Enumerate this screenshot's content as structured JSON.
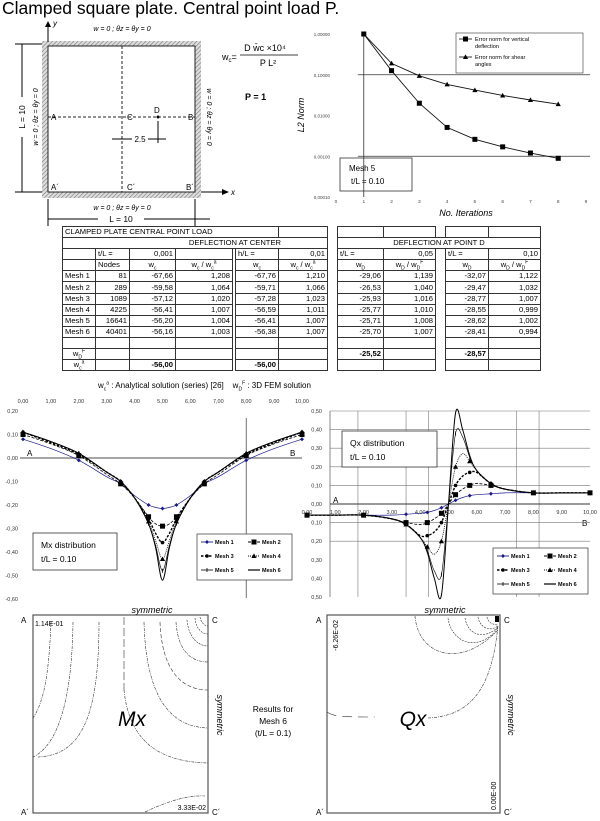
{
  "title": "Clamped square plate. Central point load P.",
  "plate": {
    "bc_top": "w = 0 ; θz = θy = 0",
    "bc_bottom": "w = 0 ; θz = θy = 0",
    "bc_left": "w = 0 ; θz = θy = 0",
    "bc_right": "w = 0 ; θz = θy = 0",
    "dim_left": "L = 10",
    "dim_bottom": "L = 10",
    "dim_inner": "2.5",
    "axis_x": "x",
    "axis_y": "y",
    "points": {
      "A": "A",
      "B": "B",
      "C": "C",
      "D": "D",
      "A2": "A´",
      "B2": "B´",
      "C2": "C´"
    }
  },
  "formula": {
    "lhs": "w",
    "lhs_sub": "c",
    "num": "D w̄c ×10⁴",
    "den": "P L²",
    "load": "P = 1"
  },
  "table": {
    "title": "CLAMPED PLATE CENTRAL POINT LOAD",
    "center_header": "DEFLECTION  AT  CENTER",
    "pointd_header": "DEFLECTION AT POINT D",
    "thickness_row": {
      "a_label": "t/L =",
      "a_value": "0,001",
      "b_label": "h/L =",
      "b_value": "0,01",
      "c_label": "t/L =",
      "c_value": "0,05",
      "d_label": "t/L =",
      "d_value": "0,10"
    },
    "col_headers": {
      "nodes": "Nodes",
      "wc": {
        "t": "w",
        "sub": "c"
      },
      "wc_ratio": {
        "t": "w",
        "sub": "c",
        "t2": " / w",
        "sub2": "c",
        "sup2": "a"
      },
      "wd": {
        "t": "w",
        "sub": "D"
      },
      "wd_ratio": {
        "t": "w",
        "sub": "D",
        "t2": " / w",
        "sub2": "D",
        "sup2": "F"
      }
    },
    "rows": [
      {
        "mesh": "Mesh 1",
        "nodes": "81",
        "a": [
          "-67,66",
          "1,208"
        ],
        "b": [
          "-67,76",
          "1,210"
        ],
        "c": [
          "-29,06",
          "1,139"
        ],
        "d": [
          "-32,07",
          "1,122"
        ]
      },
      {
        "mesh": "Mesh 2",
        "nodes": "289",
        "a": [
          "-59,58",
          "1,064"
        ],
        "b": [
          "-59,71",
          "1,066"
        ],
        "c": [
          "-26,53",
          "1,040"
        ],
        "d": [
          "-29,47",
          "1,032"
        ]
      },
      {
        "mesh": "Mesh 3",
        "nodes": "1089",
        "a": [
          "-57,12",
          "1,020"
        ],
        "b": [
          "-57,28",
          "1,023"
        ],
        "c": [
          "-25,93",
          "1,016"
        ],
        "d": [
          "-28,77",
          "1,007"
        ]
      },
      {
        "mesh": "Mesh 4",
        "nodes": "4225",
        "a": [
          "-56,41",
          "1,007"
        ],
        "b": [
          "-56,59",
          "1,011"
        ],
        "c": [
          "-25,77",
          "1,010"
        ],
        "d": [
          "-28,55",
          "0,999"
        ]
      },
      {
        "mesh": "Mesh 5",
        "nodes": "16641",
        "a": [
          "-56,20",
          "1,004"
        ],
        "b": [
          "-56,41",
          "1,007"
        ],
        "c": [
          "-25,71",
          "1,008"
        ],
        "d": [
          "-28,62",
          "1,002"
        ]
      },
      {
        "mesh": "Mesh 6",
        "nodes": "40401",
        "a": [
          "-56,16",
          "1,003"
        ],
        "b": [
          "-56,38",
          "1,007"
        ],
        "c": [
          "-25,70",
          "1,007"
        ],
        "d": [
          "-28,41",
          "0,994"
        ]
      }
    ],
    "ref_fem": {
      "label": {
        "t": "w",
        "sub": "D",
        "sup": "F"
      },
      "c": "-25,52",
      "d": "-28,57"
    },
    "ref_analytical": {
      "label": {
        "t": "w",
        "sub": "c",
        "sup": "a"
      },
      "a": "-56,00",
      "b": "-56,00"
    }
  },
  "footnote": {
    "a_sym": "w",
    "a_sub": "c",
    "a_sup": "a",
    "a_text": " : Analytical solution (series) [26]",
    "f_sym": "w",
    "f_sub": "D",
    "f_sup": "F",
    "f_text": " : 3D FEM solution"
  },
  "chart_data": [
    {
      "id": "l2",
      "type": "line",
      "xlabel": "No. Iterations",
      "ylabel": "L2 Norm",
      "yscale": "log",
      "xlim": [
        0,
        9
      ],
      "ylim": [
        0.0001,
        1
      ],
      "x_ticks": [
        "0",
        "1",
        "2",
        "3",
        "4",
        "5",
        "6",
        "7",
        "8",
        "9"
      ],
      "y_ticks": [
        "1,00000",
        "0,10000",
        "0,01000",
        "0,00100",
        "0,00010"
      ],
      "x": [
        1,
        2,
        3,
        4,
        5,
        6,
        7,
        8
      ],
      "series": [
        {
          "name": "Error norm for vertical deflection",
          "marker": "square",
          "values": [
            1.0,
            0.126,
            0.02,
            0.0051,
            0.0026,
            0.0017,
            0.0012,
            0.00089
          ]
        },
        {
          "name": "Error norm for shear angles",
          "marker": "triangle",
          "values": [
            1.0,
            0.19,
            0.094,
            0.058,
            0.042,
            0.031,
            0.024,
            0.019
          ]
        }
      ],
      "legend": "top-right",
      "annotation": [
        "Mesh 5",
        "t/L = 0.10"
      ]
    },
    {
      "id": "mx",
      "type": "line",
      "xlim": [
        0,
        10
      ],
      "ylim": [
        -0.6,
        0.2
      ],
      "x_ticks": [
        "0,00",
        "1,00",
        "2,00",
        "3,00",
        "4,00",
        "5,00",
        "6,00",
        "7,00",
        "8,00",
        "9,00",
        "10,00"
      ],
      "y_ticks": [
        "0,20",
        "0,10",
        "0,00",
        "-0,10",
        "-0,20",
        "-0,30",
        "-0,40",
        "-0,50",
        "-0,60"
      ],
      "x": [
        0,
        1,
        2,
        3,
        3.5,
        4,
        4.5,
        4.75,
        5,
        5.25,
        5.5,
        6,
        6.5,
        7,
        8,
        9,
        10
      ],
      "series": [
        {
          "name": "Mesh 1",
          "color": "#1a1a8c",
          "values": [
            0.08,
            0.04,
            -0.01,
            -0.08,
            -0.11,
            -0.16,
            -0.2,
            -0.21,
            -0.215,
            -0.21,
            -0.2,
            -0.16,
            -0.11,
            -0.08,
            -0.01,
            0.04,
            0.08
          ]
        },
        {
          "name": "Mesh 2",
          "values": [
            0.1,
            0.06,
            0.01,
            -0.07,
            -0.11,
            -0.17,
            -0.25,
            -0.28,
            -0.29,
            -0.28,
            -0.25,
            -0.17,
            -0.11,
            -0.07,
            0.01,
            0.06,
            0.1
          ]
        },
        {
          "name": "Mesh 3",
          "values": [
            0.11,
            0.065,
            0.015,
            -0.06,
            -0.1,
            -0.17,
            -0.26,
            -0.32,
            -0.36,
            -0.32,
            -0.26,
            -0.17,
            -0.1,
            -0.06,
            0.015,
            0.065,
            0.11
          ]
        },
        {
          "name": "Mesh 4",
          "values": [
            0.11,
            0.07,
            0.02,
            -0.06,
            -0.1,
            -0.17,
            -0.27,
            -0.35,
            -0.43,
            -0.35,
            -0.27,
            -0.17,
            -0.1,
            -0.06,
            0.02,
            0.07,
            0.11
          ]
        },
        {
          "name": "Mesh 5",
          "values": [
            0.11,
            0.07,
            0.02,
            -0.06,
            -0.1,
            -0.17,
            -0.28,
            -0.37,
            -0.48,
            -0.37,
            -0.28,
            -0.17,
            -0.1,
            -0.06,
            0.02,
            0.07,
            0.11
          ]
        },
        {
          "name": "Mesh 6",
          "values": [
            0.11,
            0.07,
            0.02,
            -0.06,
            -0.1,
            -0.17,
            -0.28,
            -0.38,
            -0.52,
            -0.38,
            -0.28,
            -0.17,
            -0.1,
            -0.06,
            0.02,
            0.07,
            0.11
          ]
        }
      ],
      "legend": "bottom-right",
      "annotation": [
        "Mx distribution",
        "t/L = 0.10"
      ],
      "point_labels": [
        "A",
        "B"
      ]
    },
    {
      "id": "qx",
      "type": "line",
      "grid": true,
      "xlim": [
        0,
        10
      ],
      "ylim": [
        -0.5,
        0.5
      ],
      "x_ticks": [
        "0,00",
        "1,00",
        "2,00",
        "3,00",
        "4,00",
        "5,00",
        "6,00",
        "7,00",
        "8,00",
        "9,00",
        "10,00"
      ],
      "y_ticks": [
        "0,50",
        "0,40",
        "0,30",
        "0,20",
        "0,10",
        "0,00",
        "0,10",
        "0,20",
        "0,30",
        "0,40",
        "0,50"
      ],
      "x": [
        0,
        1,
        2,
        3,
        3.5,
        4,
        4.25,
        4.5,
        4.75,
        5,
        5.25,
        5.5,
        5.75,
        6,
        6.5,
        7,
        8,
        9,
        10
      ],
      "series": [
        {
          "name": "Mesh 1",
          "color": "#1a1a8c",
          "values": [
            -0.06,
            -0.06,
            -0.06,
            -0.06,
            -0.055,
            -0.05,
            -0.045,
            -0.035,
            -0.02,
            0,
            0.02,
            0.035,
            0.045,
            0.05,
            0.055,
            0.06,
            0.06,
            0.06,
            0.06
          ]
        },
        {
          "name": "Mesh 2",
          "values": [
            -0.06,
            -0.06,
            -0.06,
            -0.08,
            -0.1,
            -0.11,
            -0.1,
            -0.08,
            -0.05,
            0,
            0.05,
            0.08,
            0.1,
            0.11,
            0.1,
            0.08,
            0.06,
            0.06,
            0.06
          ]
        },
        {
          "name": "Mesh 3",
          "values": [
            -0.06,
            -0.06,
            -0.06,
            -0.08,
            -0.11,
            -0.17,
            -0.17,
            -0.15,
            -0.1,
            0,
            0.1,
            0.15,
            0.17,
            0.17,
            0.11,
            0.08,
            0.06,
            0.06,
            0.06
          ]
        },
        {
          "name": "Mesh 4",
          "values": [
            -0.06,
            -0.06,
            -0.06,
            -0.08,
            -0.11,
            -0.18,
            -0.23,
            -0.27,
            -0.2,
            0,
            0.2,
            0.27,
            0.23,
            0.18,
            0.11,
            0.08,
            0.06,
            0.06,
            0.06
          ]
        },
        {
          "name": "Mesh 5",
          "values": [
            -0.06,
            -0.06,
            -0.06,
            -0.08,
            -0.11,
            -0.18,
            -0.25,
            -0.36,
            -0.38,
            0,
            0.38,
            0.36,
            0.25,
            0.18,
            0.11,
            0.08,
            0.06,
            0.06,
            0.06
          ]
        },
        {
          "name": "Mesh 6",
          "values": [
            -0.06,
            -0.06,
            -0.06,
            -0.08,
            -0.11,
            -0.18,
            -0.26,
            -0.4,
            -0.49,
            0,
            0.49,
            0.4,
            0.26,
            0.18,
            0.11,
            0.08,
            0.06,
            0.06,
            0.06
          ]
        }
      ],
      "legend": "bottom-right",
      "annotation": [
        "Qx distribution",
        "t/L = 0.10"
      ],
      "point_labels": [
        "A",
        "B"
      ]
    }
  ],
  "contours": {
    "mx": {
      "label": "Mx",
      "top": "symmetric",
      "right": "symmetric",
      "max_value": "1.14E-01",
      "min_value": "3.33E-02",
      "corners": [
        "A",
        "C",
        "A´",
        "C´"
      ]
    },
    "qx": {
      "label": "Qx",
      "top": "symmetric",
      "right": "symmetric",
      "max_value": "-6.26E-02",
      "min_value": "0.00E-00",
      "corners": [
        "A",
        "C",
        "A´",
        "C´"
      ]
    },
    "note": [
      "Results for",
      "Mesh 6",
      "(t/L = 0.1)"
    ]
  }
}
